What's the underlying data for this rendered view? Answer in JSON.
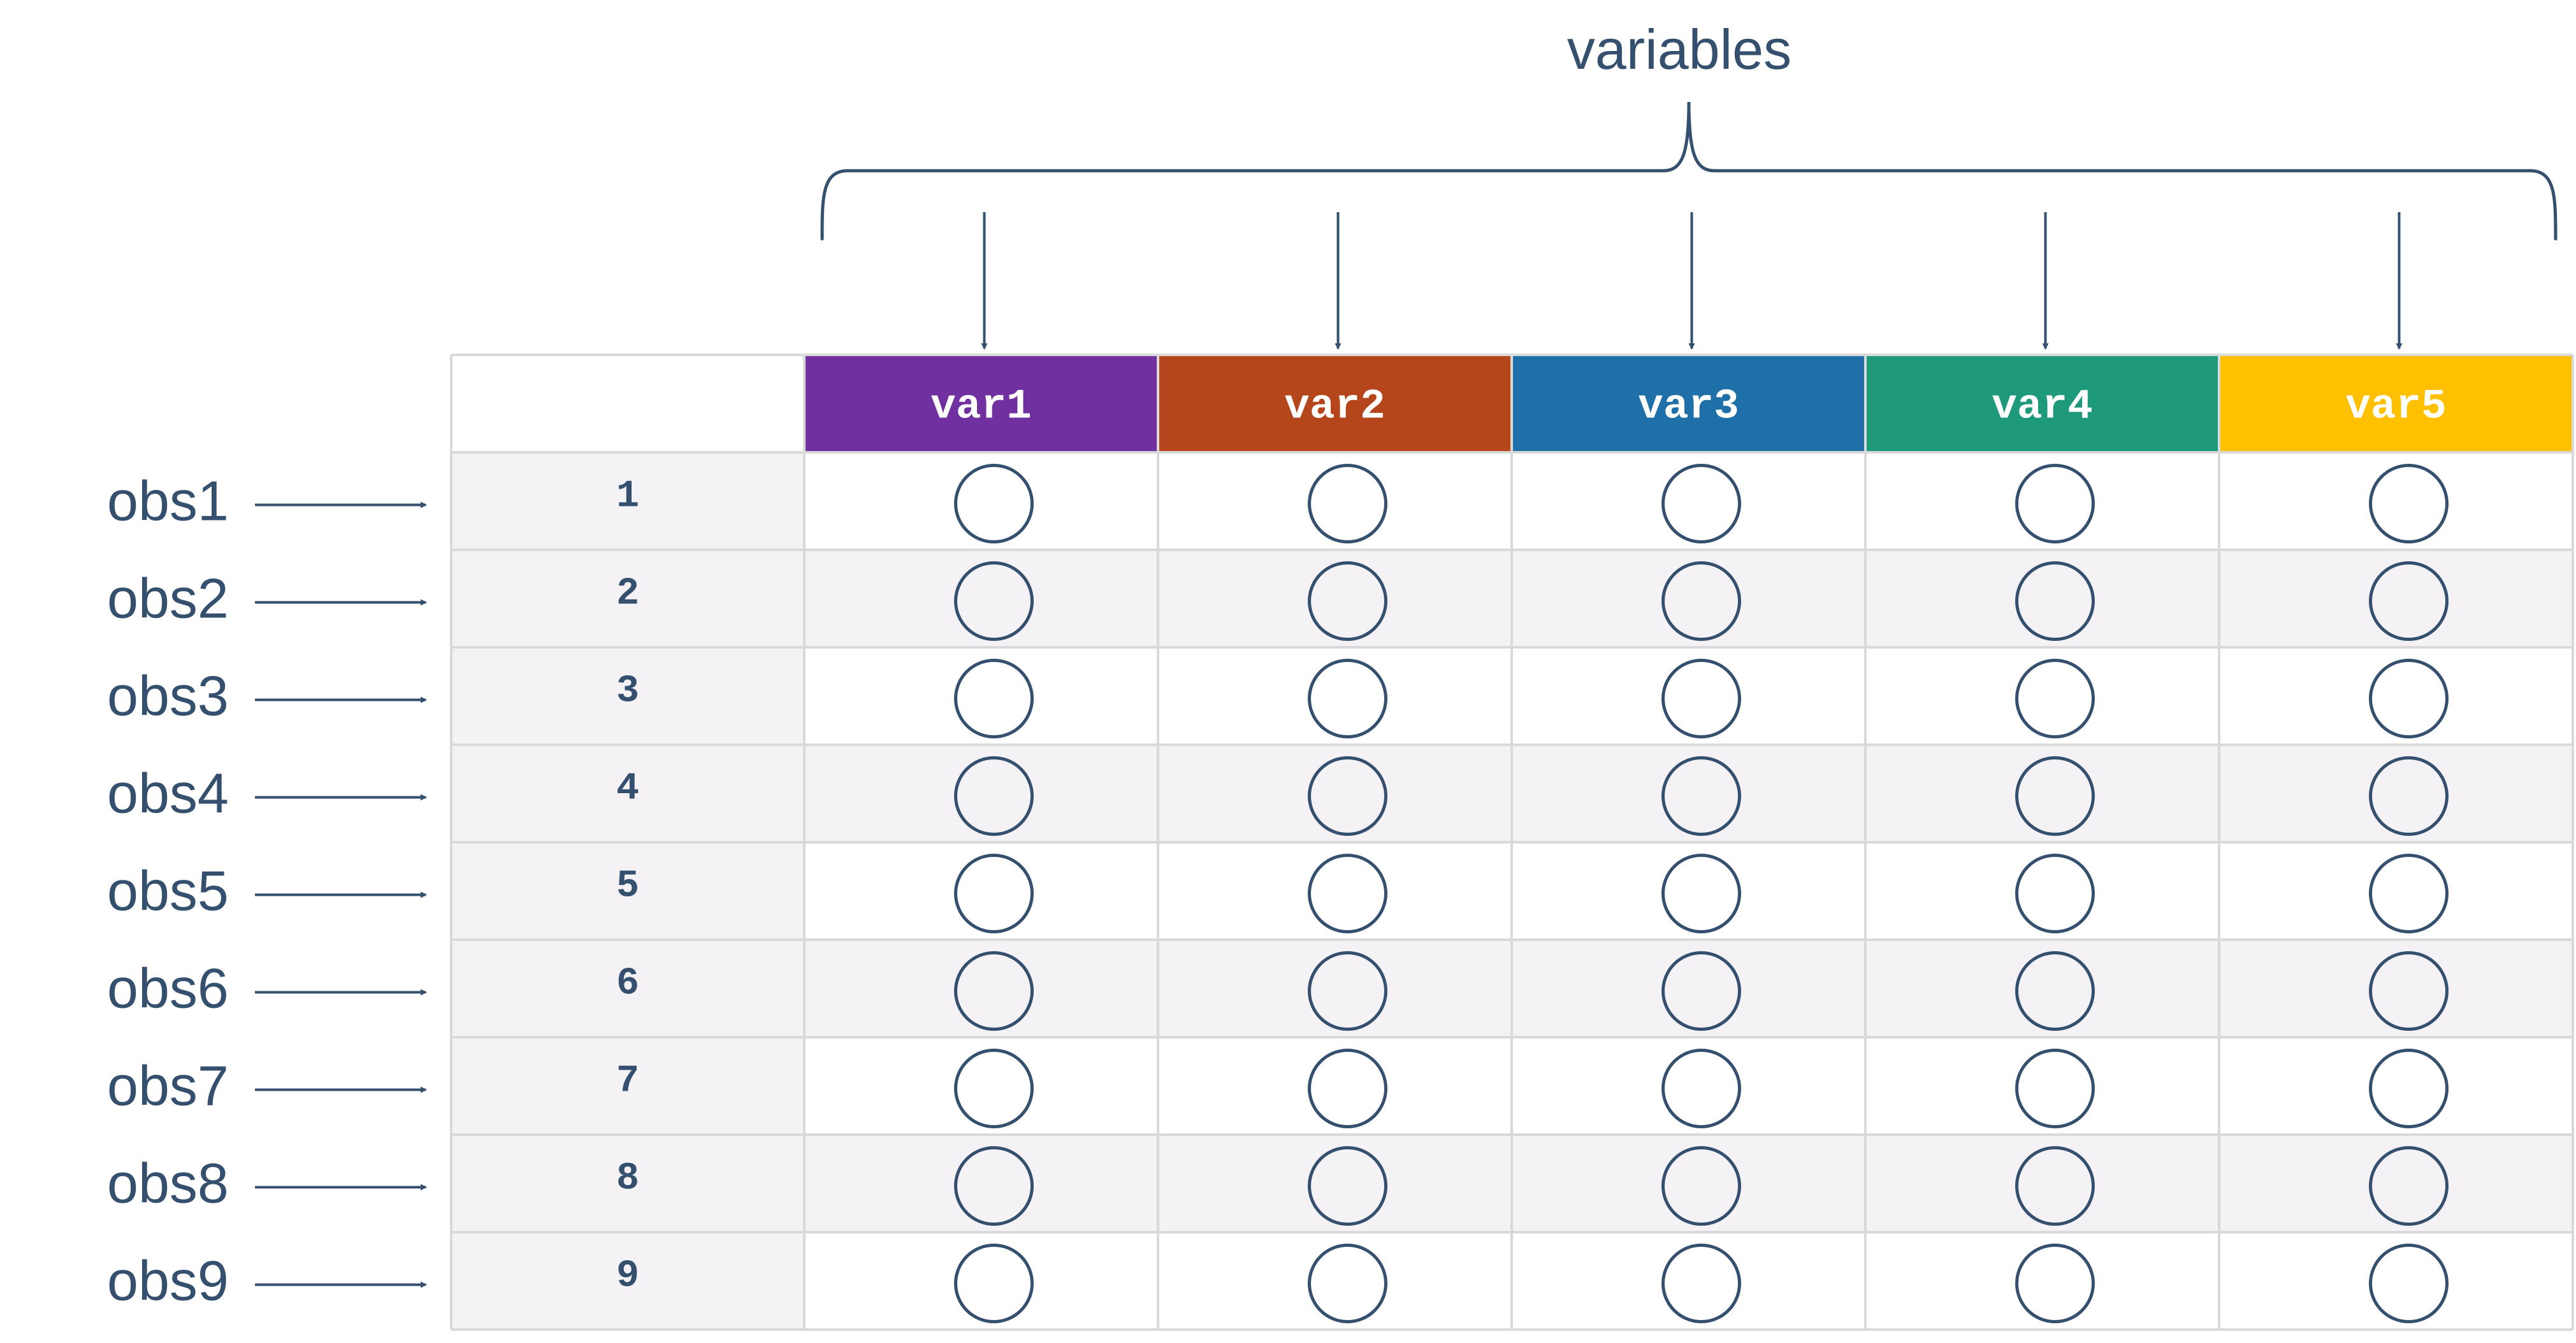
{
  "title": "variables",
  "variables": [
    {
      "name": "var1",
      "color": "#7030a0"
    },
    {
      "name": "var2",
      "color": "#b5451b"
    },
    {
      "name": "var3",
      "color": "#1f6fa8"
    },
    {
      "name": "var4",
      "color": "#1e9a7a"
    },
    {
      "name": "var5",
      "color": "#ffc000"
    }
  ],
  "observations": [
    {
      "label": "obs1",
      "index": "1"
    },
    {
      "label": "obs2",
      "index": "2"
    },
    {
      "label": "obs3",
      "index": "3"
    },
    {
      "label": "obs4",
      "index": "4"
    },
    {
      "label": "obs5",
      "index": "5"
    },
    {
      "label": "obs6",
      "index": "6"
    },
    {
      "label": "obs7",
      "index": "7"
    },
    {
      "label": "obs8",
      "index": "8"
    },
    {
      "label": "obs9",
      "index": "9"
    }
  ],
  "colors": {
    "text": "#34506e",
    "grid": "#d9d9d9",
    "row_fill": "#f4f2f4",
    "header_text": "#ffffff"
  }
}
